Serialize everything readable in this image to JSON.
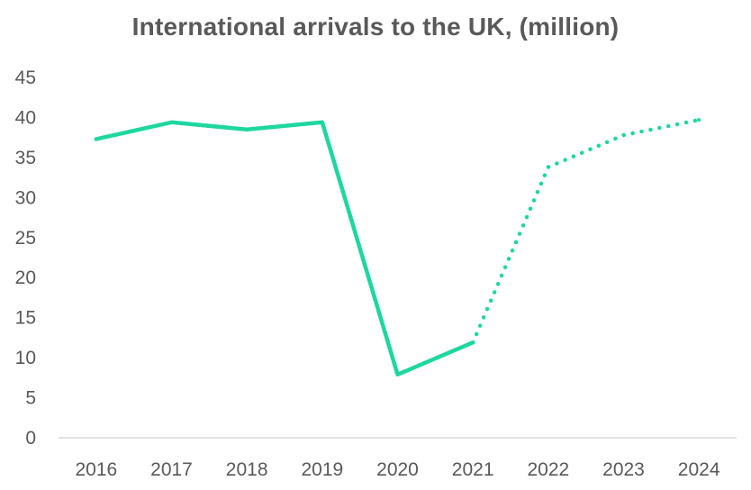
{
  "chart_data": {
    "type": "line",
    "title": "International arrivals to the UK, (million)",
    "xlabel": "",
    "ylabel": "",
    "categories": [
      "2016",
      "2017",
      "2018",
      "2019",
      "2020",
      "2021",
      "2022",
      "2023",
      "2024"
    ],
    "y_ticks": [
      "0",
      "5",
      "10",
      "15",
      "20",
      "25",
      "30",
      "35",
      "40",
      "45"
    ],
    "ylim": [
      0,
      45
    ],
    "grid": false,
    "legend": "none",
    "series": [
      {
        "values": [
          37.3,
          39.4,
          38.5,
          39.4,
          7.9,
          11.9,
          33.8,
          37.8,
          39.7
        ],
        "solid_through_index": 5,
        "color": "#1ed79f"
      }
    ]
  }
}
